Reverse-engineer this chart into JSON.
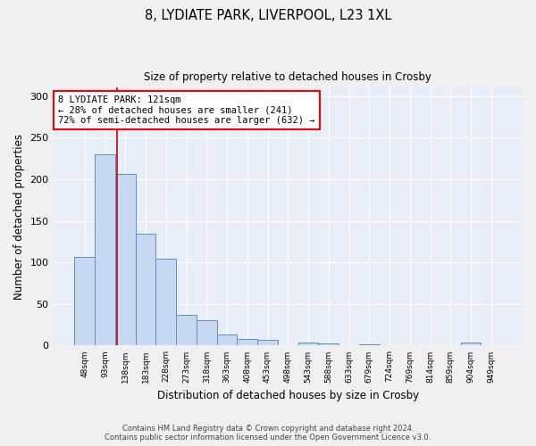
{
  "title1": "8, LYDIATE PARK, LIVERPOOL, L23 1XL",
  "title2": "Size of property relative to detached houses in Crosby",
  "xlabel": "Distribution of detached houses by size in Crosby",
  "ylabel": "Number of detached properties",
  "categories": [
    "48sqm",
    "93sqm",
    "138sqm",
    "183sqm",
    "228sqm",
    "273sqm",
    "318sqm",
    "363sqm",
    "408sqm",
    "453sqm",
    "498sqm",
    "543sqm",
    "588sqm",
    "633sqm",
    "679sqm",
    "724sqm",
    "769sqm",
    "814sqm",
    "859sqm",
    "904sqm",
    "949sqm"
  ],
  "values": [
    107,
    230,
    206,
    135,
    104,
    37,
    30,
    13,
    8,
    7,
    0,
    4,
    3,
    0,
    2,
    0,
    0,
    0,
    0,
    4,
    0
  ],
  "bar_color": "#c6d9f1",
  "bar_edge_color": "#5b8fc9",
  "background_color": "#e8eef8",
  "fig_background_color": "#f0f0f0",
  "grid_color": "#ffffff",
  "vline_color": "#cc0000",
  "vline_position": 1.6,
  "annotation_text": "8 LYDIATE PARK: 121sqm\n← 28% of detached houses are smaller (241)\n72% of semi-detached houses are larger (632) →",
  "footnote1": "Contains HM Land Registry data © Crown copyright and database right 2024.",
  "footnote2": "Contains public sector information licensed under the Open Government Licence v3.0.",
  "ylim": [
    0,
    310
  ],
  "yticks": [
    0,
    50,
    100,
    150,
    200,
    250,
    300
  ]
}
